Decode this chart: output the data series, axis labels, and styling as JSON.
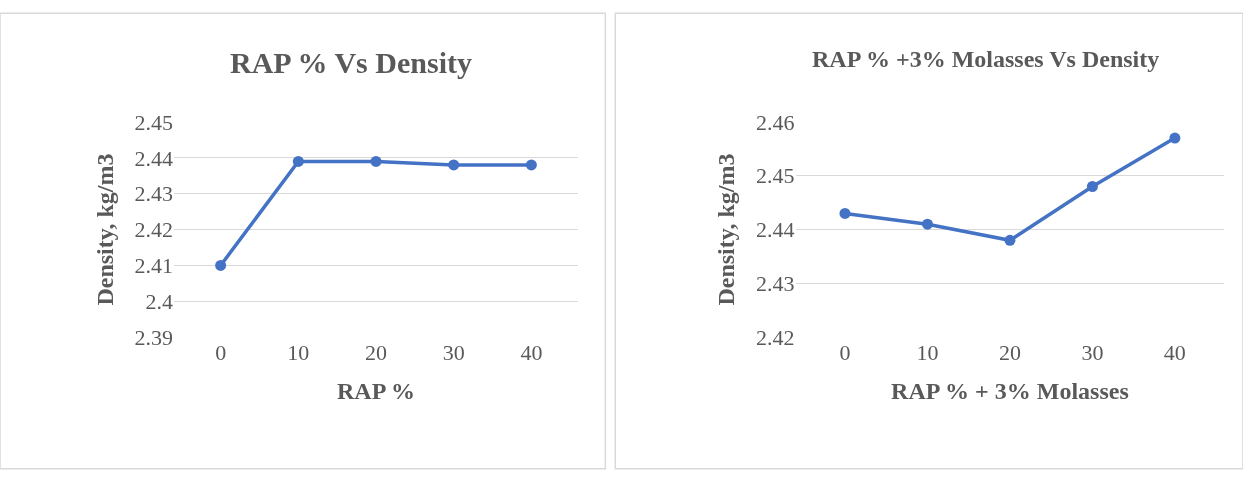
{
  "chart_data": [
    {
      "type": "line",
      "title": "RAP % Vs Density",
      "xlabel": "RAP %",
      "ylabel": "Density, kg/m3",
      "categories": [
        "0",
        "10",
        "20",
        "30",
        "40"
      ],
      "series": [
        {
          "color": "#4472c4",
          "values": [
            2.41,
            2.439,
            2.439,
            2.438,
            2.438
          ]
        }
      ],
      "ylim": [
        2.39,
        2.45
      ],
      "yticks": [
        2.39,
        2.4,
        2.41,
        2.42,
        2.43,
        2.44,
        2.45
      ],
      "grid": "y",
      "marker": "circle",
      "line_style": "solid"
    },
    {
      "type": "line",
      "title": "RAP % +3% Molasses Vs Density",
      "xlabel": "RAP % + 3% Molasses",
      "ylabel": "Density, kg/m3",
      "categories": [
        "0",
        "10",
        "20",
        "30",
        "40"
      ],
      "series": [
        {
          "color": "#4472c4",
          "values": [
            2.443,
            2.441,
            2.438,
            2.448,
            2.457
          ]
        }
      ],
      "ylim": [
        2.42,
        2.46
      ],
      "yticks": [
        2.42,
        2.43,
        2.44,
        2.45,
        2.46
      ],
      "grid": "y",
      "marker": "circle",
      "line_style": "solid"
    }
  ]
}
